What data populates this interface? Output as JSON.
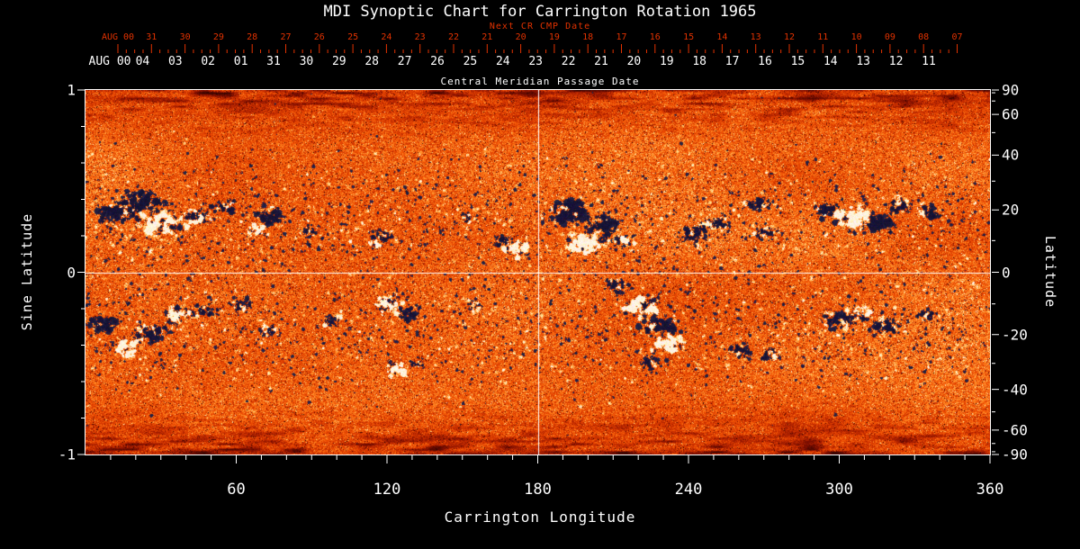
{
  "chart_data": {
    "type": "heatmap",
    "title": "MDI Synoptic Chart for Carrington Rotation 1965",
    "top_axis_red": {
      "label": "Next CR CMP Date",
      "ticks": [
        "AUG 00",
        "31",
        "30",
        "29",
        "28",
        "27",
        "26",
        "25",
        "24",
        "23",
        "22",
        "21",
        "20",
        "19",
        "18",
        "17",
        "16",
        "15",
        "14",
        "13",
        "12",
        "11",
        "10",
        "09",
        "08",
        "07"
      ]
    },
    "top_axis_white": {
      "label": "Central Meridian Passage Date",
      "ticks": [
        "AUG 00",
        "04",
        "03",
        "02",
        "01",
        "31",
        "30",
        "29",
        "28",
        "27",
        "26",
        "25",
        "24",
        "23",
        "22",
        "21",
        "20",
        "19",
        "18",
        "17",
        "16",
        "15",
        "14",
        "13",
        "12",
        "11"
      ]
    },
    "x_axis": {
      "label": "Carrington Longitude",
      "ticks": [
        60,
        120,
        180,
        240,
        300,
        360
      ],
      "range": [
        0,
        360
      ],
      "minor_step": 10
    },
    "y_axis_left": {
      "label": "Sine Latitude",
      "ticks": [
        1,
        0,
        -1
      ],
      "range": [
        -1,
        1
      ]
    },
    "y_axis_right": {
      "label": "Latitude",
      "ticks": [
        90,
        60,
        40,
        20,
        0,
        -20,
        -40,
        -60,
        -90
      ],
      "minor_ticks": [
        80,
        70,
        50,
        30,
        10,
        -10,
        -30,
        -50,
        -70,
        -80
      ]
    },
    "crosshair": {
      "longitude": 180,
      "sine_latitude": 0
    },
    "colors": {
      "background": "#000000",
      "axis_text": "#ffffff",
      "red_axis_text": "#e23200",
      "quiet_sun_palette": [
        "#140000",
        "#800e00",
        "#cd3000",
        "#f25204",
        "#ff8a24",
        "#ffc86e",
        "#fff8d2"
      ],
      "negative_polarity": "#141240",
      "positive_polarity": "#ffffff",
      "crosshair": "#ffffff"
    },
    "activity_bands": [
      {
        "slat": 0.3,
        "sigma": 0.17
      },
      {
        "slat": -0.3,
        "sigma": 0.17
      }
    ],
    "active_regions": [
      {
        "lon": 12,
        "slat": 0.33,
        "size": 13,
        "neg": 0.88
      },
      {
        "lon": 21,
        "slat": 0.38,
        "size": 15,
        "neg": 0.78
      },
      {
        "lon": 30,
        "slat": 0.27,
        "size": 15,
        "neg": 0.28
      },
      {
        "lon": 44,
        "slat": 0.31,
        "size": 11,
        "neg": 0.62
      },
      {
        "lon": 55,
        "slat": 0.36,
        "size": 8,
        "neg": 0.7
      },
      {
        "lon": 68,
        "slat": 0.24,
        "size": 8,
        "neg": 0.2
      },
      {
        "lon": 73,
        "slat": 0.31,
        "size": 11,
        "neg": 0.85
      },
      {
        "lon": 89,
        "slat": 0.23,
        "size": 7,
        "neg": 0.7
      },
      {
        "lon": 115,
        "slat": 0.16,
        "size": 5,
        "neg": 0.15
      },
      {
        "lon": 118,
        "slat": 0.2,
        "size": 8,
        "neg": 0.65
      },
      {
        "lon": 152,
        "slat": 0.3,
        "size": 6,
        "neg": 0.6
      },
      {
        "lon": 166,
        "slat": 0.17,
        "size": 7,
        "neg": 0.85
      },
      {
        "lon": 171,
        "slat": 0.13,
        "size": 10,
        "neg": 0.18
      },
      {
        "lon": 192,
        "slat": 0.33,
        "size": 15,
        "neg": 0.85
      },
      {
        "lon": 198,
        "slat": 0.16,
        "size": 13,
        "neg": 0.2
      },
      {
        "lon": 206,
        "slat": 0.26,
        "size": 13,
        "neg": 0.75
      },
      {
        "lon": 214,
        "slat": 0.18,
        "size": 9,
        "neg": 0.5
      },
      {
        "lon": 242,
        "slat": 0.21,
        "size": 10,
        "neg": 0.78
      },
      {
        "lon": 247,
        "slat": 0.27,
        "size": 7,
        "neg": 0.3
      },
      {
        "lon": 253,
        "slat": 0.27,
        "size": 8,
        "neg": 0.7
      },
      {
        "lon": 268,
        "slat": 0.38,
        "size": 9,
        "neg": 0.8
      },
      {
        "lon": 271,
        "slat": 0.22,
        "size": 9,
        "neg": 0.72
      },
      {
        "lon": 296,
        "slat": 0.35,
        "size": 10,
        "neg": 0.8
      },
      {
        "lon": 305,
        "slat": 0.3,
        "size": 14,
        "neg": 0.15
      },
      {
        "lon": 315,
        "slat": 0.27,
        "size": 12,
        "neg": 0.85
      },
      {
        "lon": 325,
        "slat": 0.37,
        "size": 10,
        "neg": 0.7
      },
      {
        "lon": 337,
        "slat": 0.33,
        "size": 9,
        "neg": 0.78
      },
      {
        "lon": 7,
        "slat": -0.28,
        "size": 11,
        "neg": 0.85
      },
      {
        "lon": 16,
        "slat": -0.41,
        "size": 10,
        "neg": 0.2
      },
      {
        "lon": 27,
        "slat": -0.33,
        "size": 12,
        "neg": 0.78
      },
      {
        "lon": 37,
        "slat": -0.23,
        "size": 11,
        "neg": 0.3
      },
      {
        "lon": 48,
        "slat": -0.21,
        "size": 9,
        "neg": 0.72
      },
      {
        "lon": 62,
        "slat": -0.18,
        "size": 8,
        "neg": 0.7
      },
      {
        "lon": 73,
        "slat": -0.31,
        "size": 8,
        "neg": 0.6
      },
      {
        "lon": 98,
        "slat": -0.26,
        "size": 7,
        "neg": 0.6
      },
      {
        "lon": 121,
        "slat": -0.17,
        "size": 10,
        "neg": 0.3
      },
      {
        "lon": 128,
        "slat": -0.23,
        "size": 9,
        "neg": 0.78
      },
      {
        "lon": 123,
        "slat": -0.53,
        "size": 9,
        "neg": 0.15
      },
      {
        "lon": 131,
        "slat": -0.5,
        "size": 5,
        "neg": 0.8
      },
      {
        "lon": 155,
        "slat": -0.18,
        "size": 6,
        "neg": 0.6
      },
      {
        "lon": 212,
        "slat": -0.07,
        "size": 9,
        "neg": 0.72
      },
      {
        "lon": 222,
        "slat": -0.18,
        "size": 13,
        "neg": 0.28
      },
      {
        "lon": 228,
        "slat": -0.29,
        "size": 12,
        "neg": 0.8
      },
      {
        "lon": 232,
        "slat": -0.4,
        "size": 11,
        "neg": 0.22
      },
      {
        "lon": 225,
        "slat": -0.5,
        "size": 9,
        "neg": 0.7
      },
      {
        "lon": 260,
        "slat": -0.43,
        "size": 9,
        "neg": 0.78
      },
      {
        "lon": 272,
        "slat": -0.45,
        "size": 8,
        "neg": 0.68
      },
      {
        "lon": 299,
        "slat": -0.26,
        "size": 11,
        "neg": 0.7
      },
      {
        "lon": 308,
        "slat": -0.22,
        "size": 10,
        "neg": 0.28
      },
      {
        "lon": 318,
        "slat": -0.3,
        "size": 10,
        "neg": 0.75
      },
      {
        "lon": 335,
        "slat": -0.23,
        "size": 7,
        "neg": 0.7
      }
    ]
  }
}
